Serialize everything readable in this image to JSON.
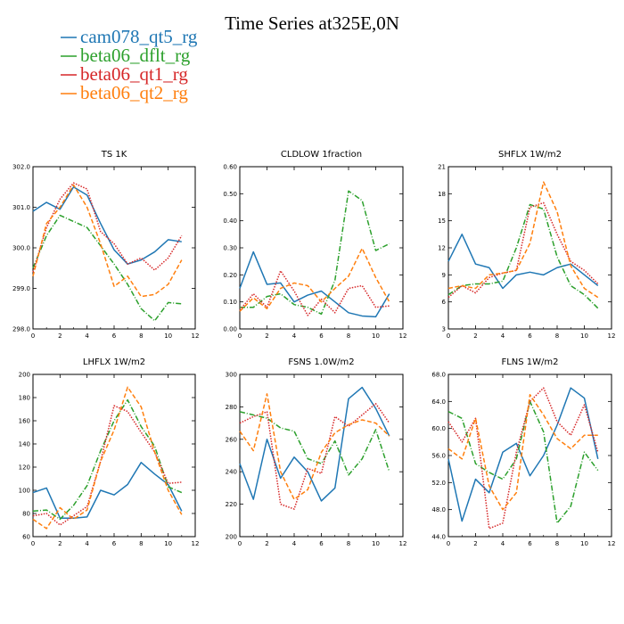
{
  "figure_title": "Time Series at325E,0N",
  "colors": {
    "cam078_qt5_rg": "#1f77b4",
    "beta06_dflt_rg": "#2ca02c",
    "beta06_qt1_rg": "#d62728",
    "beta06_qt2_rg": "#ff7f0e"
  },
  "legend": [
    {
      "name": "cam078_qt5_rg",
      "color": "#1f77b4",
      "dash": "solid"
    },
    {
      "name": "beta06_dflt_rg",
      "color": "#2ca02c",
      "dash": "dashdot"
    },
    {
      "name": "beta06_qt1_rg",
      "color": "#d62728",
      "dash": "dotted"
    },
    {
      "name": "beta06_qt2_rg",
      "color": "#ff7f0e",
      "dash": "dashed"
    }
  ],
  "chart_data": [
    {
      "type": "line",
      "title": "TS   1K",
      "x": [
        0,
        1,
        2,
        3,
        4,
        5,
        6,
        7,
        8,
        9,
        10,
        11
      ],
      "xlim": [
        0,
        12
      ],
      "xticks": [
        0,
        2,
        4,
        6,
        8,
        10,
        12
      ],
      "ylim": [
        298.0,
        302.0
      ],
      "yticks": [
        298.0,
        299.0,
        300.0,
        301.0,
        302.0
      ],
      "ytick_labels": [
        "298.0",
        "299.0",
        "300.0",
        "301.0",
        "302.0"
      ],
      "series": [
        {
          "name": "cam078_qt5_rg",
          "values": [
            300.9,
            301.12,
            300.95,
            301.5,
            301.3,
            300.6,
            299.95,
            299.6,
            299.7,
            299.9,
            300.2,
            300.15
          ]
        },
        {
          "name": "beta06_dflt_rg",
          "values": [
            299.5,
            300.3,
            300.8,
            300.65,
            300.5,
            300.05,
            299.6,
            299.1,
            298.5,
            298.2,
            298.65,
            298.62
          ]
        },
        {
          "name": "beta06_qt1_rg",
          "values": [
            299.4,
            300.5,
            301.2,
            301.6,
            301.45,
            300.4,
            300.1,
            299.6,
            299.75,
            299.45,
            299.75,
            300.3
          ]
        },
        {
          "name": "beta06_qt2_rg",
          "values": [
            299.3,
            300.6,
            301.0,
            301.55,
            301.0,
            300.1,
            299.05,
            299.3,
            298.8,
            298.85,
            299.1,
            299.7
          ]
        }
      ]
    },
    {
      "type": "line",
      "title": "CLDLOW   1fraction",
      "x": [
        0,
        1,
        2,
        3,
        4,
        5,
        6,
        7,
        8,
        9,
        10,
        11
      ],
      "xlim": [
        0,
        12
      ],
      "xticks": [
        0,
        2,
        4,
        6,
        8,
        10,
        12
      ],
      "ylim": [
        0.0,
        0.6
      ],
      "yticks": [
        0.0,
        0.1,
        0.2,
        0.3,
        0.4,
        0.5,
        0.6
      ],
      "ytick_labels": [
        "0.00",
        "0.10",
        "0.20",
        "0.30",
        "0.40",
        "0.50",
        "0.60"
      ],
      "series": [
        {
          "name": "cam078_qt5_rg",
          "values": [
            0.15,
            0.285,
            0.165,
            0.17,
            0.1,
            0.125,
            0.14,
            0.1,
            0.06,
            0.048,
            0.045,
            0.13
          ]
        },
        {
          "name": "beta06_dflt_rg",
          "values": [
            0.08,
            0.08,
            0.12,
            0.13,
            0.09,
            0.08,
            0.055,
            0.18,
            0.51,
            0.475,
            0.29,
            0.315
          ]
        },
        {
          "name": "beta06_qt1_rg",
          "values": [
            0.07,
            0.13,
            0.08,
            0.215,
            0.14,
            0.05,
            0.11,
            0.06,
            0.15,
            0.16,
            0.08,
            0.085
          ]
        },
        {
          "name": "beta06_qt2_rg",
          "values": [
            0.065,
            0.115,
            0.075,
            0.15,
            0.17,
            0.16,
            0.1,
            0.15,
            0.195,
            0.298,
            0.19,
            0.1
          ]
        }
      ]
    },
    {
      "type": "line",
      "title": "SHFLX   1W/m2",
      "x": [
        0,
        1,
        2,
        3,
        4,
        5,
        6,
        7,
        8,
        9,
        10,
        11
      ],
      "xlim": [
        0,
        12
      ],
      "xticks": [
        0,
        2,
        4,
        6,
        8,
        10,
        12
      ],
      "ylim": [
        3,
        21
      ],
      "yticks": [
        3,
        6,
        9,
        12,
        15,
        18,
        21
      ],
      "ytick_labels": [
        "3",
        "6",
        "9",
        "12",
        "15",
        "18",
        "21"
      ],
      "series": [
        {
          "name": "cam078_qt5_rg",
          "values": [
            10.5,
            13.5,
            10.2,
            9.8,
            7.5,
            9.0,
            9.3,
            9.0,
            9.8,
            10.2,
            9.0,
            7.8
          ]
        },
        {
          "name": "beta06_dflt_rg",
          "values": [
            6.8,
            7.8,
            8.0,
            8.0,
            8.3,
            12.0,
            16.8,
            16.3,
            11.0,
            7.8,
            6.8,
            5.3
          ]
        },
        {
          "name": "beta06_qt1_rg",
          "values": [
            6.5,
            7.8,
            7.0,
            8.7,
            9.2,
            9.5,
            16.5,
            17.0,
            13.5,
            10.5,
            9.5,
            8.0
          ]
        },
        {
          "name": "beta06_qt2_rg",
          "values": [
            7.5,
            7.8,
            7.5,
            9.0,
            9.2,
            9.5,
            12.5,
            19.3,
            16.0,
            10.0,
            7.5,
            6.5
          ]
        }
      ]
    },
    {
      "type": "line",
      "title": "LHFLX   1W/m2",
      "x": [
        0,
        1,
        2,
        3,
        4,
        5,
        6,
        7,
        8,
        9,
        10,
        11
      ],
      "xlim": [
        0,
        12
      ],
      "xticks": [
        0,
        2,
        4,
        6,
        8,
        10,
        12
      ],
      "ylim": [
        60,
        200
      ],
      "yticks": [
        60,
        80,
        100,
        120,
        140,
        160,
        180,
        200
      ],
      "ytick_labels": [
        "60",
        "80",
        "100",
        "120",
        "140",
        "160",
        "180",
        "200"
      ],
      "series": [
        {
          "name": "cam078_qt5_rg",
          "values": [
            98,
            102,
            76,
            76,
            77,
            100,
            96,
            105,
            124,
            114,
            105,
            82
          ]
        },
        {
          "name": "beta06_dflt_rg",
          "values": [
            82,
            83,
            75,
            87,
            104,
            134,
            160,
            178,
            155,
            138,
            103,
            98
          ]
        },
        {
          "name": "beta06_qt1_rg",
          "values": [
            78,
            80,
            70,
            78,
            86,
            125,
            173,
            168,
            150,
            133,
            106,
            107
          ]
        },
        {
          "name": "beta06_qt2_rg",
          "values": [
            75,
            67,
            85,
            75,
            83,
            125,
            152,
            189,
            172,
            133,
            100,
            79
          ]
        }
      ]
    },
    {
      "type": "line",
      "title": "FSNS   1.0W/m2",
      "x": [
        0,
        1,
        2,
        3,
        4,
        5,
        6,
        7,
        8,
        9,
        10,
        11
      ],
      "xlim": [
        0,
        12
      ],
      "xticks": [
        0,
        2,
        4,
        6,
        8,
        10,
        12
      ],
      "ylim": [
        200,
        300
      ],
      "yticks": [
        200,
        220,
        240,
        260,
        280,
        300
      ],
      "ytick_labels": [
        "200",
        "220",
        "240",
        "260",
        "280",
        "300"
      ],
      "series": [
        {
          "name": "cam078_qt5_rg",
          "values": [
            245,
            223,
            260,
            236,
            249,
            240,
            222,
            230,
            285,
            292,
            279,
            262
          ]
        },
        {
          "name": "beta06_dflt_rg",
          "values": [
            277,
            275,
            273,
            267,
            265,
            248,
            245,
            259,
            238,
            248,
            266,
            240
          ]
        },
        {
          "name": "beta06_qt1_rg",
          "values": [
            270,
            274,
            277,
            220,
            217,
            242,
            239,
            274,
            268,
            275,
            282,
            270
          ]
        },
        {
          "name": "beta06_qt2_rg",
          "values": [
            265,
            253,
            288,
            240,
            223,
            229,
            252,
            264,
            269,
            272,
            270,
            262
          ]
        }
      ]
    },
    {
      "type": "line",
      "title": "FLNS   1W/m2",
      "x": [
        0,
        1,
        2,
        3,
        4,
        5,
        6,
        7,
        8,
        9,
        10,
        11
      ],
      "xlim": [
        0,
        12
      ],
      "xticks": [
        0,
        2,
        4,
        6,
        8,
        10,
        12
      ],
      "ylim": [
        44,
        68
      ],
      "yticks": [
        44,
        48,
        52,
        56,
        60,
        64,
        68
      ],
      "ytick_labels": [
        "44.0",
        "48.0",
        "52.0",
        "56.0",
        "60.0",
        "64.0",
        "68.0"
      ],
      "series": [
        {
          "name": "cam078_qt5_rg",
          "values": [
            55.5,
            46.3,
            52.5,
            50.5,
            56.5,
            57.8,
            53.0,
            56.0,
            60.5,
            66.0,
            64.5,
            55.5
          ]
        },
        {
          "name": "beta06_dflt_rg",
          "values": [
            62.5,
            61.5,
            54.8,
            53.5,
            52.5,
            55.5,
            64.0,
            59.5,
            46.0,
            48.5,
            56.5,
            53.8
          ]
        },
        {
          "name": "beta06_qt1_rg",
          "values": [
            61.0,
            58.0,
            61.5,
            45.2,
            46.0,
            56.5,
            64.0,
            66.0,
            61.0,
            59.0,
            63.5,
            56.5
          ]
        },
        {
          "name": "beta06_qt2_rg",
          "values": [
            57.0,
            55.5,
            61.5,
            51.5,
            48.0,
            50.5,
            65.0,
            62.0,
            58.5,
            57.0,
            59.0,
            59.0
          ]
        }
      ]
    }
  ]
}
